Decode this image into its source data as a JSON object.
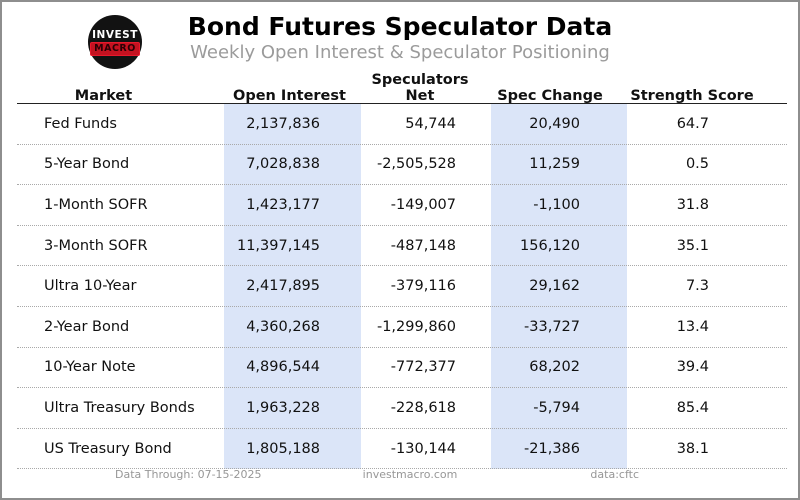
{
  "page": {
    "title": "Bond Futures Speculator Data",
    "subtitle": "Weekly Open Interest & Speculator Positioning",
    "logo": {
      "line1": "INVEST",
      "line2": "MACRO"
    }
  },
  "colors": {
    "column_highlight": "#dbe5f8",
    "logo_red": "#c41220",
    "subtitle_gray": "#9b9b9b"
  },
  "chart_data": {
    "type": "table",
    "title": "Bond Futures Speculator Data",
    "subtitle": "Weekly Open Interest & Speculator Positioning",
    "columns": [
      "Market",
      "Open Interest",
      "Speculators Net",
      "Spec Change",
      "Strength Score"
    ],
    "highlighted_columns": [
      "Open Interest",
      "Spec Change"
    ],
    "rows": [
      [
        "Fed Funds",
        "2,137,836",
        "54,744",
        "20,490",
        "64.7"
      ],
      [
        "5-Year Bond",
        "7,028,838",
        "-2,505,528",
        "11,259",
        "0.5"
      ],
      [
        "1-Month SOFR",
        "1,423,177",
        "-149,007",
        "-1,100",
        "31.8"
      ],
      [
        "3-Month SOFR",
        "11,397,145",
        "-487,148",
        "156,120",
        "35.1"
      ],
      [
        "Ultra 10-Year",
        "2,417,895",
        "-379,116",
        "29,162",
        "7.3"
      ],
      [
        "2-Year Bond",
        "4,360,268",
        "-1,299,860",
        "-33,727",
        "13.4"
      ],
      [
        "10-Year Note",
        "4,896,544",
        "-772,377",
        "68,202",
        "39.4"
      ],
      [
        "Ultra Treasury Bonds",
        "1,963,228",
        "-228,618",
        "-5,794",
        "85.4"
      ],
      [
        "US Treasury Bond",
        "1,805,188",
        "-130,144",
        "-21,386",
        "38.1"
      ]
    ]
  },
  "footer": {
    "data_through": "Data Through: 07-15-2025",
    "site": "investmacro.com",
    "source": "data:cftc"
  }
}
